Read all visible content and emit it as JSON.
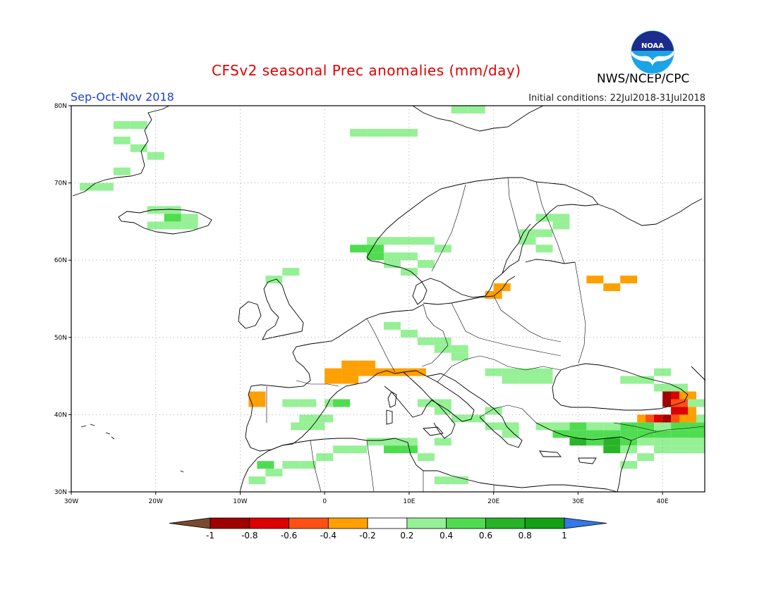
{
  "header": {
    "title": "CFSv2 seasonal Prec anomalies (mm/day)",
    "agency": "NWS/NCEP/CPC",
    "logo_text": "NOAA",
    "season": "Sep-Oct-Nov 2018",
    "initial_conditions": "Initial conditions: 22Jul2018-31Jul2018"
  },
  "map": {
    "lon_range": [
      -30,
      45
    ],
    "lat_range": [
      30,
      80
    ],
    "lon_ticks": [
      {
        "value": -30,
        "label": "30W"
      },
      {
        "value": -20,
        "label": "20W"
      },
      {
        "value": -10,
        "label": "10W"
      },
      {
        "value": 0,
        "label": "0"
      },
      {
        "value": 10,
        "label": "10E"
      },
      {
        "value": 20,
        "label": "20E"
      },
      {
        "value": 30,
        "label": "30E"
      },
      {
        "value": 40,
        "label": "40E"
      }
    ],
    "lat_ticks": [
      {
        "value": 30,
        "label": "30N"
      },
      {
        "value": 40,
        "label": "40N"
      },
      {
        "value": 50,
        "label": "50N"
      },
      {
        "value": 60,
        "label": "60N"
      },
      {
        "value": 70,
        "label": "70N"
      },
      {
        "value": 80,
        "label": "80N"
      }
    ],
    "grid": true,
    "anomaly_cells": [
      {
        "lon": -24,
        "lat": 77.5,
        "v": 0.3
      },
      {
        "lon": -22,
        "lat": 77.5,
        "v": 0.3
      },
      {
        "lon": -24,
        "lat": 75.5,
        "v": 0.3
      },
      {
        "lon": -22,
        "lat": 74.5,
        "v": 0.3
      },
      {
        "lon": -20,
        "lat": 73.5,
        "v": 0.3
      },
      {
        "lon": -24,
        "lat": 71.5,
        "v": 0.3
      },
      {
        "lon": -28,
        "lat": 69.5,
        "v": 0.3
      },
      {
        "lon": -26,
        "lat": 69.5,
        "v": 0.3
      },
      {
        "lon": -20,
        "lat": 66.5,
        "v": 0.3
      },
      {
        "lon": -18,
        "lat": 66.5,
        "v": 0.3
      },
      {
        "lon": -16,
        "lat": 65.5,
        "v": 0.3
      },
      {
        "lon": -18,
        "lat": 64.5,
        "v": 0.3
      },
      {
        "lon": -20,
        "lat": 64.5,
        "v": 0.3
      },
      {
        "lon": -16,
        "lat": 64.5,
        "v": 0.3
      },
      {
        "lon": -18,
        "lat": 65.5,
        "v": 0.5
      },
      {
        "lon": 4,
        "lat": 76.5,
        "v": 0.3
      },
      {
        "lon": 6,
        "lat": 76.5,
        "v": 0.3
      },
      {
        "lon": 8,
        "lat": 76.5,
        "v": 0.3
      },
      {
        "lon": 10,
        "lat": 76.5,
        "v": 0.3
      },
      {
        "lon": 18,
        "lat": 79.5,
        "v": 0.3
      },
      {
        "lon": 16,
        "lat": 79.5,
        "v": 0.3
      },
      {
        "lon": 6,
        "lat": 62.5,
        "v": 0.3
      },
      {
        "lon": 8,
        "lat": 62.5,
        "v": 0.3
      },
      {
        "lon": 10,
        "lat": 62.5,
        "v": 0.3
      },
      {
        "lon": 12,
        "lat": 62.5,
        "v": 0.3
      },
      {
        "lon": 14,
        "lat": 61.5,
        "v": 0.3
      },
      {
        "lon": 8,
        "lat": 60.5,
        "v": 0.3
      },
      {
        "lon": 10,
        "lat": 60.5,
        "v": 0.3
      },
      {
        "lon": 12,
        "lat": 59.5,
        "v": 0.3
      },
      {
        "lon": 8,
        "lat": 59.5,
        "v": 0.3
      },
      {
        "lon": 6,
        "lat": 61.5,
        "v": 0.5
      },
      {
        "lon": 6,
        "lat": 60.5,
        "v": 0.5
      },
      {
        "lon": 4,
        "lat": 61.5,
        "v": 0.5
      },
      {
        "lon": 10,
        "lat": 58.5,
        "v": 0.3
      },
      {
        "lon": 26,
        "lat": 65.5,
        "v": 0.3
      },
      {
        "lon": 28,
        "lat": 65.5,
        "v": 0.3
      },
      {
        "lon": 24,
        "lat": 63.5,
        "v": 0.3
      },
      {
        "lon": 26,
        "lat": 63.5,
        "v": 0.3
      },
      {
        "lon": 24,
        "lat": 62.5,
        "v": 0.3
      },
      {
        "lon": 26,
        "lat": 61.5,
        "v": 0.3
      },
      {
        "lon": 28,
        "lat": 64.5,
        "v": 0.3
      },
      {
        "lon": -4,
        "lat": 58.5,
        "v": 0.3
      },
      {
        "lon": -6,
        "lat": 57.5,
        "v": 0.3
      },
      {
        "lon": 8,
        "lat": 51.5,
        "v": 0.3
      },
      {
        "lon": 10,
        "lat": 50.5,
        "v": 0.3
      },
      {
        "lon": 12,
        "lat": 49.5,
        "v": 0.3
      },
      {
        "lon": 14,
        "lat": 49.5,
        "v": 0.3
      },
      {
        "lon": 14,
        "lat": 48.5,
        "v": 0.3
      },
      {
        "lon": 16,
        "lat": 48.5,
        "v": 0.3
      },
      {
        "lon": 16,
        "lat": 47.5,
        "v": 0.3
      },
      {
        "lon": 22,
        "lat": 45.5,
        "v": 0.3
      },
      {
        "lon": 24,
        "lat": 45.5,
        "v": 0.3
      },
      {
        "lon": 26,
        "lat": 45.5,
        "v": 0.3
      },
      {
        "lon": 24,
        "lat": 44.5,
        "v": 0.3
      },
      {
        "lon": 22,
        "lat": 44.5,
        "v": 0.3
      },
      {
        "lon": 20,
        "lat": 45.5,
        "v": 0.3
      },
      {
        "lon": 26,
        "lat": 44.5,
        "v": 0.3
      },
      {
        "lon": 38,
        "lat": 44.5,
        "v": 0.3
      },
      {
        "lon": 40,
        "lat": 45.5,
        "v": 0.3
      },
      {
        "lon": 40,
        "lat": 43.5,
        "v": 0.3
      },
      {
        "lon": 42,
        "lat": 43.5,
        "v": 0.3
      },
      {
        "lon": 36,
        "lat": 44.5,
        "v": 0.3
      },
      {
        "lon": -4,
        "lat": 41.5,
        "v": 0.3
      },
      {
        "lon": -2,
        "lat": 41.5,
        "v": 0.3
      },
      {
        "lon": -2,
        "lat": 39.5,
        "v": 0.3
      },
      {
        "lon": -3,
        "lat": 38.5,
        "v": 0.3
      },
      {
        "lon": -1,
        "lat": 38.5,
        "v": 0.3
      },
      {
        "lon": 0,
        "lat": 39.5,
        "v": 0.3
      },
      {
        "lon": 1,
        "lat": 41.5,
        "v": 0.3
      },
      {
        "lon": 2,
        "lat": 41.5,
        "v": 0.5
      },
      {
        "lon": 12,
        "lat": 41.5,
        "v": 0.3
      },
      {
        "lon": 14,
        "lat": 41.5,
        "v": 0.3
      },
      {
        "lon": 14,
        "lat": 40.5,
        "v": 0.3
      },
      {
        "lon": 16,
        "lat": 39.5,
        "v": 0.3
      },
      {
        "lon": 18,
        "lat": 39.5,
        "v": 0.3
      },
      {
        "lon": 20,
        "lat": 40.5,
        "v": 0.3
      },
      {
        "lon": 20,
        "lat": 38.5,
        "v": 0.3
      },
      {
        "lon": 22,
        "lat": 38.5,
        "v": 0.3
      },
      {
        "lon": 22,
        "lat": 37.5,
        "v": 0.3
      },
      {
        "lon": 14,
        "lat": 36.5,
        "v": 0.3
      },
      {
        "lon": 8,
        "lat": 36.5,
        "v": 0.3
      },
      {
        "lon": 10,
        "lat": 36.5,
        "v": 0.3
      },
      {
        "lon": 10,
        "lat": 35.5,
        "v": 0.5
      },
      {
        "lon": 8,
        "lat": 35.5,
        "v": 0.5
      },
      {
        "lon": 6,
        "lat": 36.5,
        "v": 0.3
      },
      {
        "lon": 4,
        "lat": 35.5,
        "v": 0.3
      },
      {
        "lon": 2,
        "lat": 35.5,
        "v": 0.3
      },
      {
        "lon": 0,
        "lat": 34.5,
        "v": 0.3
      },
      {
        "lon": -2,
        "lat": 33.5,
        "v": 0.3
      },
      {
        "lon": -4,
        "lat": 33.5,
        "v": 0.3
      },
      {
        "lon": -6,
        "lat": 32.5,
        "v": 0.3
      },
      {
        "lon": -7,
        "lat": 33.5,
        "v": 0.5
      },
      {
        "lon": -8,
        "lat": 31.5,
        "v": 0.3
      },
      {
        "lon": 12,
        "lat": 34.5,
        "v": 0.3
      },
      {
        "lon": 14,
        "lat": 31.5,
        "v": 0.3
      },
      {
        "lon": 16,
        "lat": 31.5,
        "v": 0.3
      },
      {
        "lon": 26,
        "lat": 38.5,
        "v": 0.3
      },
      {
        "lon": 28,
        "lat": 38.5,
        "v": 0.3
      },
      {
        "lon": 28,
        "lat": 37.5,
        "v": 0.5
      },
      {
        "lon": 30,
        "lat": 37.5,
        "v": 0.5
      },
      {
        "lon": 32,
        "lat": 37.5,
        "v": 0.5
      },
      {
        "lon": 34,
        "lat": 37.5,
        "v": 0.5
      },
      {
        "lon": 36,
        "lat": 37.5,
        "v": 0.5
      },
      {
        "lon": 38,
        "lat": 37.5,
        "v": 0.5
      },
      {
        "lon": 40,
        "lat": 37.5,
        "v": 0.5
      },
      {
        "lon": 42,
        "lat": 37.5,
        "v": 0.5
      },
      {
        "lon": 44,
        "lat": 37.5,
        "v": 0.5
      },
      {
        "lon": 30,
        "lat": 38.5,
        "v": 0.5
      },
      {
        "lon": 36,
        "lat": 38.5,
        "v": 0.5
      },
      {
        "lon": 38,
        "lat": 38.5,
        "v": 0.5
      },
      {
        "lon": 40,
        "lat": 38.5,
        "v": 0.3
      },
      {
        "lon": 42,
        "lat": 38.5,
        "v": 0.5
      },
      {
        "lon": 44,
        "lat": 38.5,
        "v": 0.5
      },
      {
        "lon": 44,
        "lat": 39.5,
        "v": 0.3
      },
      {
        "lon": 30,
        "lat": 36.5,
        "v": 0.7
      },
      {
        "lon": 32,
        "lat": 36.5,
        "v": 0.5
      },
      {
        "lon": 34,
        "lat": 36.5,
        "v": 0.7
      },
      {
        "lon": 36,
        "lat": 36.5,
        "v": 0.5
      },
      {
        "lon": 38,
        "lat": 36.5,
        "v": 0.3
      },
      {
        "lon": 40,
        "lat": 36.5,
        "v": 0.3
      },
      {
        "lon": 42,
        "lat": 36.5,
        "v": 0.3
      },
      {
        "lon": 44,
        "lat": 36.5,
        "v": 0.3
      },
      {
        "lon": 34,
        "lat": 35.5,
        "v": 0.7
      },
      {
        "lon": 36,
        "lat": 35.5,
        "v": 0.3
      },
      {
        "lon": 40,
        "lat": 35.5,
        "v": 0.3
      },
      {
        "lon": 42,
        "lat": 35.5,
        "v": 0.3
      },
      {
        "lon": 44,
        "lat": 35.5,
        "v": 0.3
      },
      {
        "lon": 32,
        "lat": 38.5,
        "v": 0.3
      },
      {
        "lon": 34,
        "lat": 38.5,
        "v": 0.3
      },
      {
        "lon": 44,
        "lat": 41.5,
        "v": 0.3
      },
      {
        "lon": 36,
        "lat": 33.5,
        "v": 0.3
      },
      {
        "lon": 38,
        "lat": 34.5,
        "v": 0.3
      },
      {
        "lon": -8,
        "lat": 42.5,
        "v": -0.3
      },
      {
        "lon": -8,
        "lat": 41.5,
        "v": -0.3
      },
      {
        "lon": 3,
        "lat": 46.5,
        "v": -0.3
      },
      {
        "lon": 5,
        "lat": 46.5,
        "v": -0.3
      },
      {
        "lon": 1,
        "lat": 45.5,
        "v": -0.3
      },
      {
        "lon": 3,
        "lat": 45.5,
        "v": -0.3
      },
      {
        "lon": 5,
        "lat": 45.5,
        "v": -0.3
      },
      {
        "lon": 7,
        "lat": 45.5,
        "v": -0.3
      },
      {
        "lon": 9,
        "lat": 45.5,
        "v": -0.3
      },
      {
        "lon": 11,
        "lat": 45.5,
        "v": -0.3
      },
      {
        "lon": 3,
        "lat": 44.5,
        "v": -0.3
      },
      {
        "lon": 1,
        "lat": 44.5,
        "v": -0.3
      },
      {
        "lon": 21,
        "lat": 56.5,
        "v": -0.3
      },
      {
        "lon": 20,
        "lat": 55.5,
        "v": -0.3
      },
      {
        "lon": 32,
        "lat": 57.5,
        "v": -0.3
      },
      {
        "lon": 34,
        "lat": 56.5,
        "v": -0.3
      },
      {
        "lon": 36,
        "lat": 57.5,
        "v": -0.3
      },
      {
        "lon": 38,
        "lat": 39.5,
        "v": -0.3
      },
      {
        "lon": 39,
        "lat": 39.5,
        "v": -0.5
      },
      {
        "lon": 40,
        "lat": 39.5,
        "v": -0.7
      },
      {
        "lon": 41,
        "lat": 39.5,
        "v": -0.9
      },
      {
        "lon": 42,
        "lat": 39.5,
        "v": -0.5
      },
      {
        "lon": 43,
        "lat": 39.5,
        "v": -0.3
      },
      {
        "lon": 41,
        "lat": 42.5,
        "v": -0.9
      },
      {
        "lon": 42,
        "lat": 42.5,
        "v": -0.7
      },
      {
        "lon": 43,
        "lat": 42.5,
        "v": -0.3
      },
      {
        "lon": 41,
        "lat": 41.5,
        "v": -0.9
      },
      {
        "lon": 42,
        "lat": 41.5,
        "v": -0.5
      },
      {
        "lon": 43,
        "lat": 40.5,
        "v": -0.3
      },
      {
        "lon": 42,
        "lat": 40.5,
        "v": -0.7
      }
    ]
  },
  "colorbar": {
    "levels": [
      "-1",
      "-0.8",
      "-0.6",
      "-0.4",
      "-0.2",
      "0.2",
      "0.4",
      "0.6",
      "0.8",
      "1"
    ],
    "colors": [
      "#a00000",
      "#dc0000",
      "#ff5014",
      "#ffa000",
      "#ffffff",
      "#96f096",
      "#50dc50",
      "#28b428",
      "#14a014"
    ],
    "under_color": "#7a4a30",
    "over_color": "#3278e6"
  }
}
